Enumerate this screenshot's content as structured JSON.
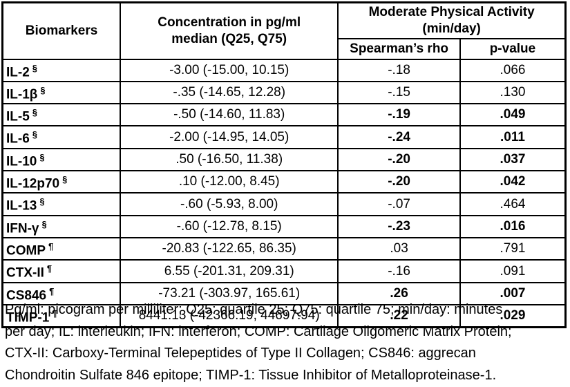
{
  "table": {
    "headers": {
      "biomarkers": "Biomarkers",
      "concentration": "Concentration in pg/ml\nmedian (Q25, Q75)",
      "activity_group": "Moderate Physical Activity\n(min/day)",
      "spearman": "Spearman’s rho",
      "p_value": "p-value"
    },
    "rows": [
      {
        "name": "IL-2",
        "marker": "§",
        "concentration": "-3.00 (-15.00, 10.15)",
        "rho": "-.18",
        "p": ".066",
        "significant": false
      },
      {
        "name": "IL-1β",
        "marker": "§",
        "concentration": "-.35 (-14.65, 12.28)",
        "rho": "-.15",
        "p": ".130",
        "significant": false
      },
      {
        "name": "IL-5",
        "marker": "§",
        "concentration": "-.50 (-14.60, 11.83)",
        "rho": "-.19",
        "p": ".049",
        "significant": true
      },
      {
        "name": "IL-6",
        "marker": "§",
        "concentration": "-2.00 (-14.95, 14.05)",
        "rho": "-.24",
        "p": ".011",
        "significant": true
      },
      {
        "name": "IL-10",
        "marker": "§",
        "concentration": ".50 (-16.50, 11.38)",
        "rho": "-.20",
        "p": ".037",
        "significant": true
      },
      {
        "name": "IL-12p70",
        "marker": "§",
        "concentration": ".10 (-12.00, 8.45)",
        "rho": "-.20",
        "p": ".042",
        "significant": true
      },
      {
        "name": "IL-13",
        "marker": "§",
        "concentration": "-.60 (-5.93, 8.00)",
        "rho": "-.07",
        "p": ".464",
        "significant": false
      },
      {
        "name": "IFN-γ",
        "marker": "§",
        "concentration": "-.60 (-12.78, 8.15)",
        "rho": "-.23",
        "p": ".016",
        "significant": true
      },
      {
        "name": "COMP",
        "marker": "¶",
        "concentration": "-20.83 (-122.65, 86.35)",
        "rho": ".03",
        "p": ".791",
        "significant": false
      },
      {
        "name": "CTX-II",
        "marker": "¶",
        "concentration": "6.55 (-201.31, 209.31)",
        "rho": "-.16",
        "p": ".091",
        "significant": false
      },
      {
        "name": "CS846",
        "marker": "¶",
        "concentration": "-73.21 (-303.97, 165.61)",
        "rho": ".26",
        "p": ".007",
        "significant": true
      },
      {
        "name": "TIMP-1",
        "marker": "¶",
        "concentration": "8441.13 (-42366.19, 44697.94)",
        "rho": ".22",
        "p": ".029",
        "significant": true
      }
    ]
  },
  "footnote_lines": [
    "Pg/ml: picogram per milliliter; Q25: quartile 25; Q75: quartile 75; min/day: minutes",
    "per day; IL: interleukin; IFN: interferon; COMP: Cartilage Oligomeric Matrix Protein;",
    "CTX-II: Carboxy-Terminal Telepeptides of Type II Collagen; CS846: aggrecan",
    "Chondroitin Sulfate 846 epitope; TIMP-1: Tissue Inhibitor of Metalloproteinase-1."
  ]
}
